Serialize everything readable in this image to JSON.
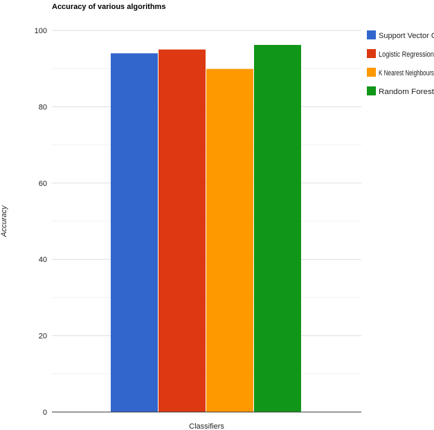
{
  "chart_data": {
    "type": "bar",
    "title": "Accuracy of various algorithms",
    "xlabel": "Classifiers",
    "ylabel": "Accuracy",
    "ylim": [
      0,
      100
    ],
    "yticks": [
      0,
      20,
      40,
      60,
      80,
      100
    ],
    "grid": true,
    "legend_position": "top-right",
    "series": [
      {
        "name": "Support Vector Classifier",
        "value": 94.0,
        "color": "#3366cc"
      },
      {
        "name": "Logistic Regression",
        "value": 95.0,
        "color": "#dc3912"
      },
      {
        "name": "K Nearest Neighbours",
        "value": 89.9,
        "color": "#ff9900"
      },
      {
        "name": "Random Forest",
        "value": 96.2,
        "color": "#109618"
      }
    ]
  }
}
